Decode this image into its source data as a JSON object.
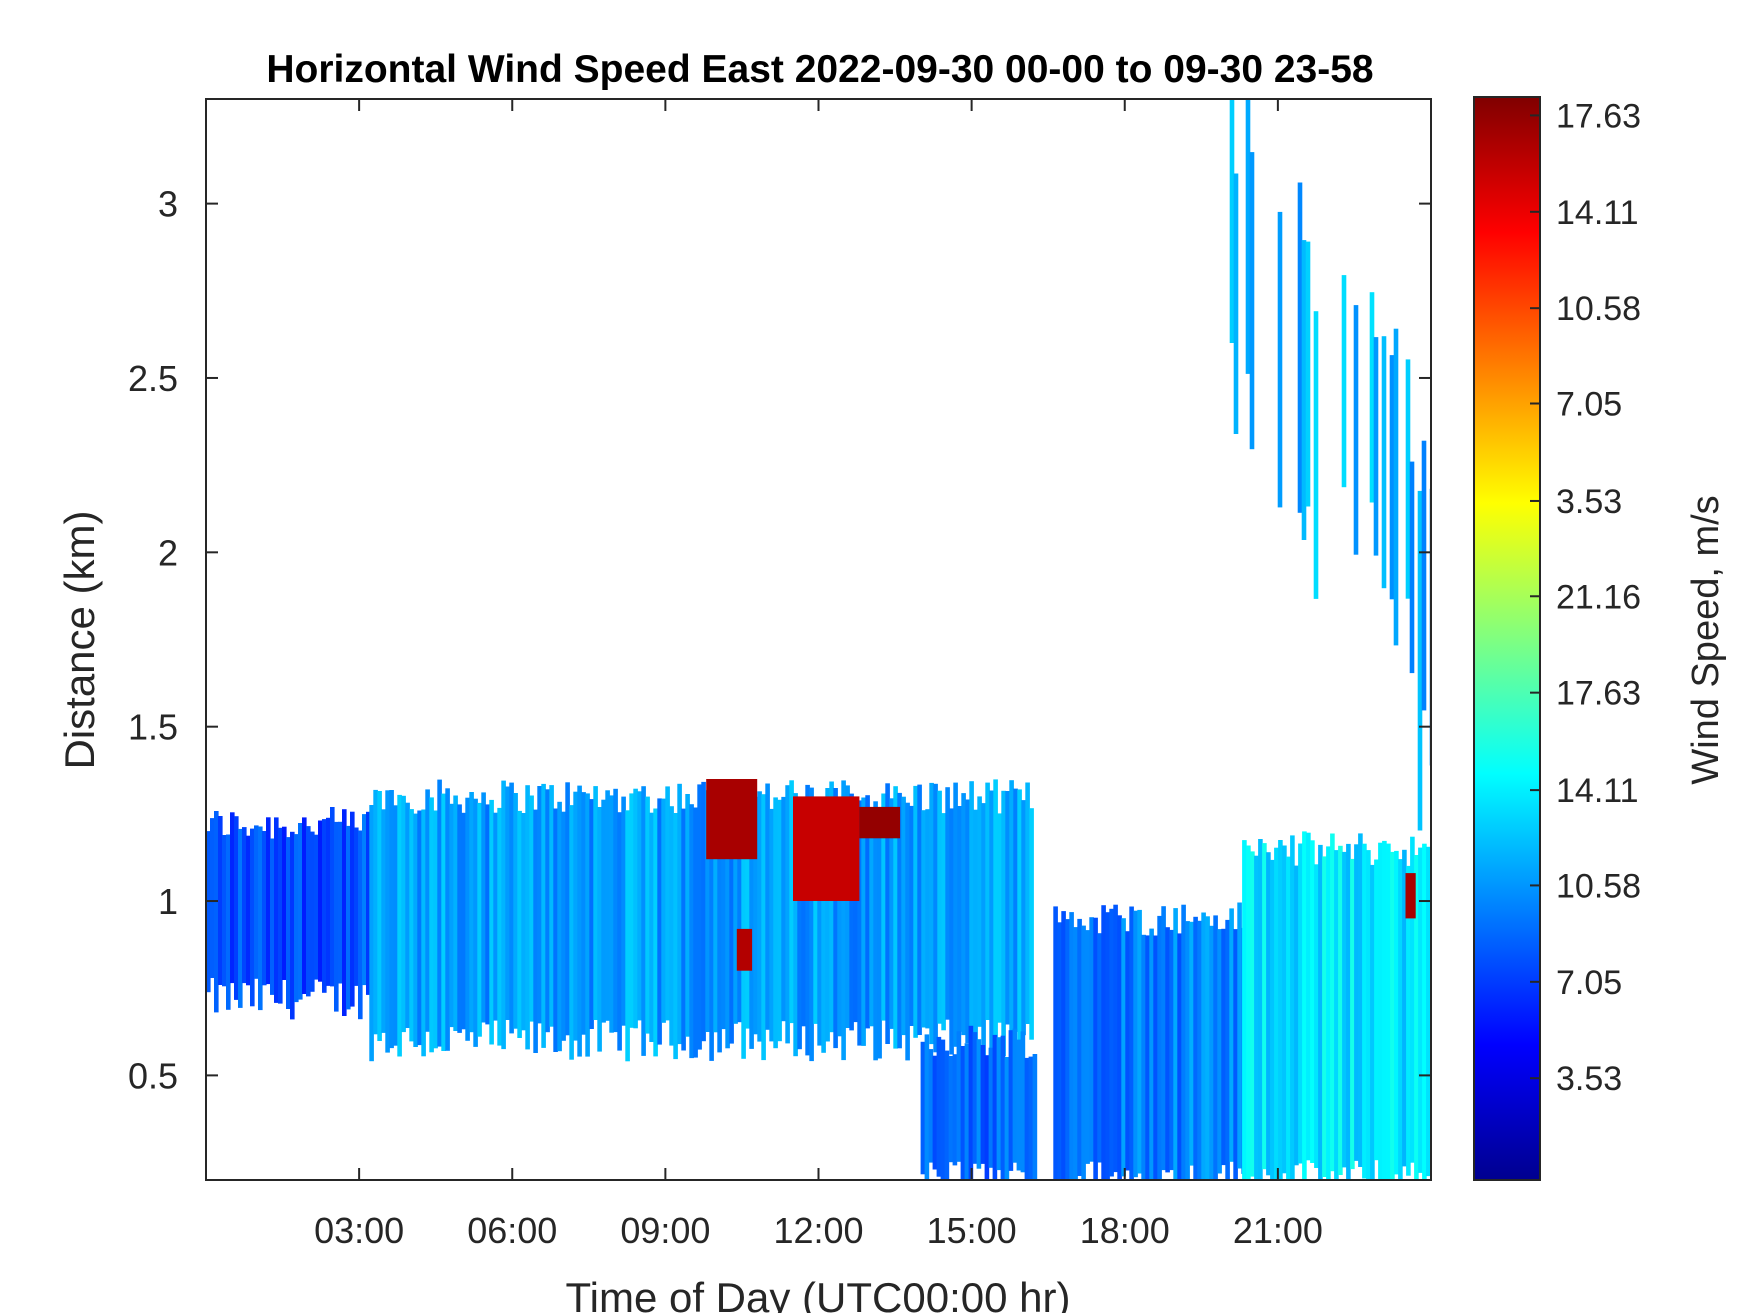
{
  "chart_data": {
    "type": "heatmap",
    "title": "Horizontal Wind Speed East 2022-09-30 00-00 to 09-30 23-58",
    "xlabel": "Time of Day (UTC00:00 hr)",
    "ylabel": "Distance (km)",
    "x_unit": "hours",
    "xlim": [
      0,
      24
    ],
    "ylim": [
      0.2,
      3.3
    ],
    "x_ticks": [
      {
        "value": 3,
        "label": "03:00"
      },
      {
        "value": 6,
        "label": "06:00"
      },
      {
        "value": 9,
        "label": "09:00"
      },
      {
        "value": 12,
        "label": "12:00"
      },
      {
        "value": 15,
        "label": "15:00"
      },
      {
        "value": 18,
        "label": "18:00"
      },
      {
        "value": 21,
        "label": "21:00"
      }
    ],
    "y_ticks": [
      {
        "value": 0.5,
        "label": "0.5"
      },
      {
        "value": 1,
        "label": "1"
      },
      {
        "value": 1.5,
        "label": "1.5"
      },
      {
        "value": 2,
        "label": "2"
      },
      {
        "value": 2.5,
        "label": "2.5"
      },
      {
        "value": 3,
        "label": "3"
      }
    ],
    "grid": false,
    "colorbar": {
      "label": "Wind Speed, m/s",
      "colormap": "jet",
      "colors": [
        "#00008f",
        "#0000ff",
        "#0080ff",
        "#00ffff",
        "#80ff80",
        "#ffff00",
        "#ff8000",
        "#ff0000",
        "#800000"
      ],
      "ticks": [
        {
          "frac": 0.094,
          "label": "3.53"
        },
        {
          "frac": 0.183,
          "label": "7.05"
        },
        {
          "frac": 0.272,
          "label": "10.58"
        },
        {
          "frac": 0.36,
          "label": "14.11"
        },
        {
          "frac": 0.45,
          "label": "17.63"
        },
        {
          "frac": 0.539,
          "label": "21.16"
        },
        {
          "frac": 0.627,
          "label": "3.53"
        },
        {
          "frac": 0.717,
          "label": "7.05"
        },
        {
          "frac": 0.805,
          "label": "10.58"
        },
        {
          "frac": 0.894,
          "label": "14.11"
        },
        {
          "frac": 0.983,
          "label": "17.63"
        }
      ]
    },
    "regions": [
      {
        "name": "early-layer",
        "x": [
          0,
          3.2
        ],
        "y_bottom": 0.72,
        "y_top": 1.22,
        "level": 0.2
      },
      {
        "name": "main-layer",
        "x": [
          3.2,
          16.2
        ],
        "y_bottom": 0.6,
        "y_top": 1.3,
        "level": 0.28
      },
      {
        "name": "afternoon-low",
        "x": [
          14.0,
          16.2
        ],
        "y_bottom": 0.2,
        "y_top": 0.6,
        "level": 0.22
      },
      {
        "name": "evening-layer",
        "x": [
          16.6,
          20.3
        ],
        "y_bottom": 0.2,
        "y_top": 0.95,
        "level": 0.25
      },
      {
        "name": "night-layer",
        "x": [
          20.3,
          24
        ],
        "y_bottom": 0.2,
        "y_top": 1.15,
        "level": 0.35
      },
      {
        "name": "late-plume",
        "x": [
          19.9,
          24
        ],
        "y_bottom": 1.2,
        "y_top": 3.3,
        "level": 0.3
      }
    ],
    "hotspots": [
      {
        "x": [
          9.8,
          10.8
        ],
        "y": [
          1.12,
          1.35
        ],
        "level": 0.96
      },
      {
        "x": [
          11.5,
          12.8
        ],
        "y": [
          1.0,
          1.3
        ],
        "level": 0.93
      },
      {
        "x": [
          12.8,
          13.6
        ],
        "y": [
          1.18,
          1.27
        ],
        "level": 0.98
      },
      {
        "x": [
          10.4,
          10.7
        ],
        "y": [
          0.8,
          0.92
        ],
        "level": 0.95
      },
      {
        "x": [
          23.5,
          23.7
        ],
        "y": [
          0.95,
          1.08
        ],
        "level": 0.96
      }
    ]
  }
}
